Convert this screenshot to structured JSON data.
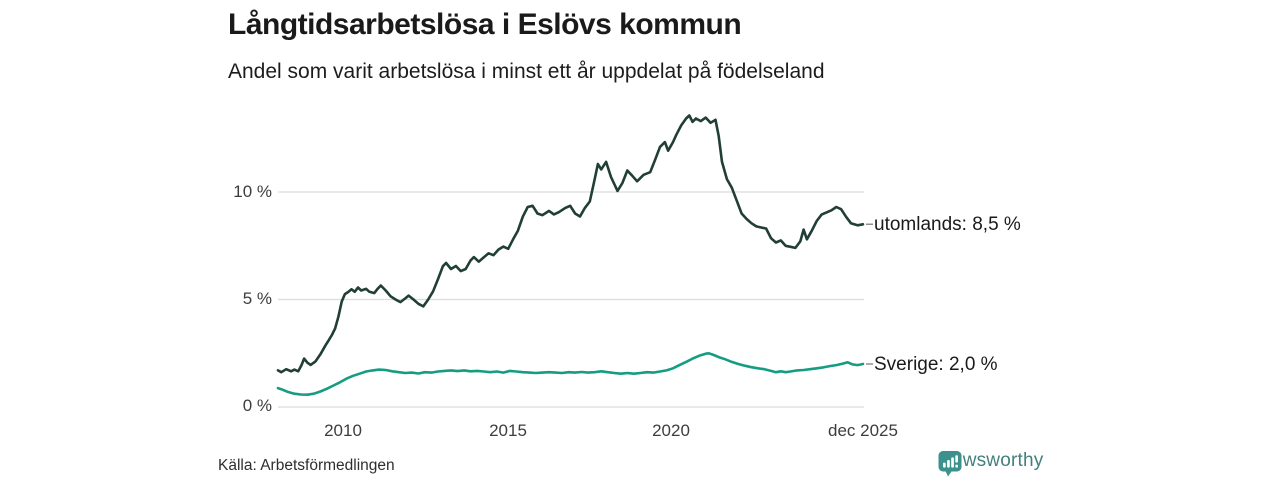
{
  "title": "Långtidsarbetslösa i Eslövs kommun",
  "subtitle": "Andel som varit arbetslösa i minst ett år uppdelat på födelseland",
  "source": "Källa: Arbetsförmedlingen",
  "brand": {
    "name": "Newsworthy",
    "icon": "newsworthy-speech-bubble-bar-chart-icon",
    "icon_color": "#3d918c",
    "text_color": "#42807d"
  },
  "colors": {
    "utomlands_line": "#213e37",
    "sverige_line": "#169c82",
    "gridline": "#dcdcdc",
    "axis_text": "#3d3d3d",
    "title_text": "#1a1a1a",
    "label_dash": "#8f8f8f",
    "background": "#ffffff"
  },
  "chart_data": {
    "type": "line",
    "title": "Långtidsarbetslösa i Eslövs kommun",
    "subtitle": "Andel som varit arbetslösa i minst ett år uppdelat på födelseland",
    "grid": "horizontal-only",
    "legend_position": "end-of-line-labels",
    "x_axis": {
      "range": [
        2008.0,
        2025.95
      ],
      "ticks": [
        {
          "t": 2010,
          "label": "2010"
        },
        {
          "t": 2015,
          "label": "2015"
        },
        {
          "t": 2020,
          "label": "2020"
        },
        {
          "t": 2025.92,
          "label": "dec 2025"
        }
      ]
    },
    "y_axis": {
      "unit": "%",
      "range": [
        0,
        13.9
      ],
      "ticks": [
        {
          "v": 0,
          "label": "0 %"
        },
        {
          "v": 5,
          "label": "5 %"
        },
        {
          "v": 10,
          "label": "10 %"
        }
      ]
    },
    "series": [
      {
        "name": "utomlands",
        "end_label": "utomlands: 8,5 %",
        "last_value_pct": 8.5,
        "color": "#213e37",
        "points": [
          [
            2008.0,
            1.7
          ],
          [
            2008.1,
            1.62
          ],
          [
            2008.25,
            1.76
          ],
          [
            2008.4,
            1.66
          ],
          [
            2008.5,
            1.74
          ],
          [
            2008.62,
            1.66
          ],
          [
            2008.72,
            1.95
          ],
          [
            2008.8,
            2.25
          ],
          [
            2008.9,
            2.06
          ],
          [
            2009.0,
            1.96
          ],
          [
            2009.15,
            2.12
          ],
          [
            2009.3,
            2.45
          ],
          [
            2009.45,
            2.85
          ],
          [
            2009.55,
            3.1
          ],
          [
            2009.65,
            3.35
          ],
          [
            2009.75,
            3.65
          ],
          [
            2009.85,
            4.2
          ],
          [
            2009.95,
            4.9
          ],
          [
            2010.05,
            5.25
          ],
          [
            2010.15,
            5.35
          ],
          [
            2010.25,
            5.48
          ],
          [
            2010.35,
            5.36
          ],
          [
            2010.45,
            5.56
          ],
          [
            2010.55,
            5.42
          ],
          [
            2010.7,
            5.5
          ],
          [
            2010.8,
            5.36
          ],
          [
            2010.95,
            5.3
          ],
          [
            2011.05,
            5.5
          ],
          [
            2011.15,
            5.65
          ],
          [
            2011.3,
            5.42
          ],
          [
            2011.45,
            5.15
          ],
          [
            2011.6,
            5.0
          ],
          [
            2011.75,
            4.88
          ],
          [
            2011.9,
            5.05
          ],
          [
            2012.0,
            5.18
          ],
          [
            2012.15,
            5.0
          ],
          [
            2012.3,
            4.8
          ],
          [
            2012.45,
            4.68
          ],
          [
            2012.6,
            5.0
          ],
          [
            2012.75,
            5.38
          ],
          [
            2012.9,
            5.95
          ],
          [
            2013.05,
            6.55
          ],
          [
            2013.15,
            6.7
          ],
          [
            2013.3,
            6.42
          ],
          [
            2013.45,
            6.56
          ],
          [
            2013.6,
            6.32
          ],
          [
            2013.75,
            6.42
          ],
          [
            2013.9,
            6.82
          ],
          [
            2014.0,
            6.97
          ],
          [
            2014.15,
            6.76
          ],
          [
            2014.3,
            6.96
          ],
          [
            2014.45,
            7.15
          ],
          [
            2014.6,
            7.06
          ],
          [
            2014.75,
            7.32
          ],
          [
            2014.9,
            7.46
          ],
          [
            2015.05,
            7.36
          ],
          [
            2015.2,
            7.8
          ],
          [
            2015.35,
            8.2
          ],
          [
            2015.5,
            8.85
          ],
          [
            2015.65,
            9.3
          ],
          [
            2015.8,
            9.36
          ],
          [
            2015.95,
            9.0
          ],
          [
            2016.1,
            8.92
          ],
          [
            2016.3,
            9.12
          ],
          [
            2016.45,
            8.96
          ],
          [
            2016.6,
            9.06
          ],
          [
            2016.8,
            9.26
          ],
          [
            2016.95,
            9.36
          ],
          [
            2017.1,
            9.0
          ],
          [
            2017.25,
            8.86
          ],
          [
            2017.4,
            9.26
          ],
          [
            2017.55,
            9.56
          ],
          [
            2017.7,
            10.6
          ],
          [
            2017.8,
            11.3
          ],
          [
            2017.9,
            11.05
          ],
          [
            2018.05,
            11.4
          ],
          [
            2018.2,
            10.7
          ],
          [
            2018.4,
            10.05
          ],
          [
            2018.55,
            10.42
          ],
          [
            2018.7,
            11.0
          ],
          [
            2018.85,
            10.76
          ],
          [
            2019.0,
            10.5
          ],
          [
            2019.2,
            10.8
          ],
          [
            2019.4,
            10.92
          ],
          [
            2019.55,
            11.5
          ],
          [
            2019.7,
            12.1
          ],
          [
            2019.85,
            12.32
          ],
          [
            2019.95,
            11.92
          ],
          [
            2020.1,
            12.32
          ],
          [
            2020.2,
            12.66
          ],
          [
            2020.35,
            13.1
          ],
          [
            2020.5,
            13.42
          ],
          [
            2020.6,
            13.56
          ],
          [
            2020.7,
            13.26
          ],
          [
            2020.8,
            13.42
          ],
          [
            2020.95,
            13.3
          ],
          [
            2021.1,
            13.46
          ],
          [
            2021.25,
            13.22
          ],
          [
            2021.4,
            13.36
          ],
          [
            2021.5,
            12.6
          ],
          [
            2021.6,
            11.4
          ],
          [
            2021.75,
            10.6
          ],
          [
            2021.9,
            10.2
          ],
          [
            2022.05,
            9.6
          ],
          [
            2022.2,
            9.0
          ],
          [
            2022.35,
            8.75
          ],
          [
            2022.5,
            8.55
          ],
          [
            2022.65,
            8.4
          ],
          [
            2022.8,
            8.35
          ],
          [
            2022.95,
            8.3
          ],
          [
            2023.1,
            7.85
          ],
          [
            2023.25,
            7.65
          ],
          [
            2023.4,
            7.75
          ],
          [
            2023.55,
            7.5
          ],
          [
            2023.7,
            7.45
          ],
          [
            2023.85,
            7.4
          ],
          [
            2024.0,
            7.7
          ],
          [
            2024.1,
            8.25
          ],
          [
            2024.2,
            7.8
          ],
          [
            2024.35,
            8.2
          ],
          [
            2024.5,
            8.65
          ],
          [
            2024.65,
            8.95
          ],
          [
            2024.8,
            9.05
          ],
          [
            2024.95,
            9.15
          ],
          [
            2025.1,
            9.3
          ],
          [
            2025.25,
            9.2
          ],
          [
            2025.4,
            8.85
          ],
          [
            2025.55,
            8.55
          ],
          [
            2025.75,
            8.45
          ],
          [
            2025.92,
            8.5
          ]
        ]
      },
      {
        "name": "Sverige",
        "end_label": "Sverige: 2,0 %",
        "last_value_pct": 2.0,
        "color": "#169c82",
        "points": [
          [
            2008.0,
            0.88
          ],
          [
            2008.15,
            0.8
          ],
          [
            2008.3,
            0.7
          ],
          [
            2008.5,
            0.62
          ],
          [
            2008.7,
            0.58
          ],
          [
            2008.9,
            0.57
          ],
          [
            2009.1,
            0.62
          ],
          [
            2009.3,
            0.72
          ],
          [
            2009.5,
            0.85
          ],
          [
            2009.7,
            1.0
          ],
          [
            2009.9,
            1.15
          ],
          [
            2010.1,
            1.32
          ],
          [
            2010.3,
            1.45
          ],
          [
            2010.5,
            1.55
          ],
          [
            2010.7,
            1.65
          ],
          [
            2010.9,
            1.7
          ],
          [
            2011.1,
            1.74
          ],
          [
            2011.3,
            1.72
          ],
          [
            2011.5,
            1.66
          ],
          [
            2011.7,
            1.62
          ],
          [
            2011.9,
            1.58
          ],
          [
            2012.1,
            1.6
          ],
          [
            2012.3,
            1.56
          ],
          [
            2012.5,
            1.62
          ],
          [
            2012.7,
            1.6
          ],
          [
            2012.9,
            1.65
          ],
          [
            2013.1,
            1.68
          ],
          [
            2013.3,
            1.7
          ],
          [
            2013.5,
            1.67
          ],
          [
            2013.7,
            1.7
          ],
          [
            2013.9,
            1.66
          ],
          [
            2014.1,
            1.68
          ],
          [
            2014.3,
            1.65
          ],
          [
            2014.5,
            1.62
          ],
          [
            2014.7,
            1.65
          ],
          [
            2014.9,
            1.6
          ],
          [
            2015.1,
            1.68
          ],
          [
            2015.3,
            1.65
          ],
          [
            2015.5,
            1.62
          ],
          [
            2015.7,
            1.6
          ],
          [
            2015.9,
            1.58
          ],
          [
            2016.1,
            1.6
          ],
          [
            2016.3,
            1.62
          ],
          [
            2016.5,
            1.6
          ],
          [
            2016.7,
            1.58
          ],
          [
            2016.9,
            1.62
          ],
          [
            2017.1,
            1.6
          ],
          [
            2017.3,
            1.63
          ],
          [
            2017.5,
            1.6
          ],
          [
            2017.7,
            1.62
          ],
          [
            2017.9,
            1.66
          ],
          [
            2018.1,
            1.62
          ],
          [
            2018.3,
            1.58
          ],
          [
            2018.5,
            1.55
          ],
          [
            2018.7,
            1.58
          ],
          [
            2018.9,
            1.55
          ],
          [
            2019.1,
            1.58
          ],
          [
            2019.3,
            1.62
          ],
          [
            2019.5,
            1.6
          ],
          [
            2019.7,
            1.65
          ],
          [
            2019.9,
            1.7
          ],
          [
            2020.1,
            1.8
          ],
          [
            2020.3,
            1.95
          ],
          [
            2020.5,
            2.1
          ],
          [
            2020.7,
            2.25
          ],
          [
            2020.9,
            2.38
          ],
          [
            2021.1,
            2.48
          ],
          [
            2021.2,
            2.5
          ],
          [
            2021.35,
            2.42
          ],
          [
            2021.5,
            2.32
          ],
          [
            2021.7,
            2.22
          ],
          [
            2021.9,
            2.1
          ],
          [
            2022.1,
            2.0
          ],
          [
            2022.3,
            1.92
          ],
          [
            2022.5,
            1.85
          ],
          [
            2022.7,
            1.8
          ],
          [
            2022.9,
            1.76
          ],
          [
            2023.1,
            1.68
          ],
          [
            2023.25,
            1.62
          ],
          [
            2023.4,
            1.66
          ],
          [
            2023.55,
            1.62
          ],
          [
            2023.7,
            1.65
          ],
          [
            2023.9,
            1.7
          ],
          [
            2024.1,
            1.72
          ],
          [
            2024.3,
            1.76
          ],
          [
            2024.5,
            1.8
          ],
          [
            2024.7,
            1.84
          ],
          [
            2024.9,
            1.9
          ],
          [
            2025.1,
            1.95
          ],
          [
            2025.3,
            2.02
          ],
          [
            2025.45,
            2.08
          ],
          [
            2025.6,
            1.98
          ],
          [
            2025.75,
            1.95
          ],
          [
            2025.92,
            2.0
          ]
        ]
      }
    ]
  }
}
